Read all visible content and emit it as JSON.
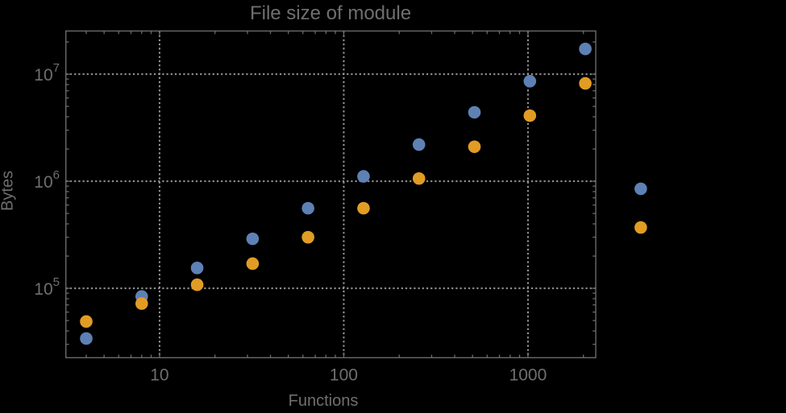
{
  "canvas": {
    "background": "#000000"
  },
  "chart_data": {
    "type": "scatter",
    "title": "File size of module",
    "xlabel": "Functions",
    "ylabel": "Bytes",
    "xscale": "log",
    "yscale": "log",
    "xlim": [
      3.1,
      2333
    ],
    "ylim": [
      22500,
      25300000
    ],
    "grid": {
      "shown": true,
      "style": "dotted",
      "color": "#989898"
    },
    "legend": "none",
    "frame_color": "#6a6a6a",
    "text_color": "#6f6f6f",
    "x_ticks": [
      {
        "value": 10,
        "label": "10"
      },
      {
        "value": 100,
        "label": "100"
      },
      {
        "value": 1000,
        "label": "1000"
      }
    ],
    "y_ticks": [
      {
        "value": 100000,
        "base": "10",
        "exp": "5"
      },
      {
        "value": 1000000,
        "base": "10",
        "exp": "6"
      },
      {
        "value": 10000000,
        "base": "10",
        "exp": "7"
      }
    ],
    "series": [
      {
        "name": "blue",
        "color": "#5E81B5",
        "points": [
          [
            4,
            34000
          ],
          [
            8,
            84000
          ],
          [
            16,
            155000
          ],
          [
            32,
            290000
          ],
          [
            64,
            560000
          ],
          [
            128,
            1110000
          ],
          [
            256,
            2200000
          ],
          [
            512,
            4400000
          ],
          [
            1024,
            8600000
          ],
          [
            2048,
            17200000
          ],
          [
            4096,
            850000
          ]
        ]
      },
      {
        "name": "orange",
        "color": "#E19C24",
        "points": [
          [
            4,
            49000
          ],
          [
            8,
            72000
          ],
          [
            16,
            108000
          ],
          [
            32,
            170000
          ],
          [
            64,
            300000
          ],
          [
            128,
            560000
          ],
          [
            256,
            1060000
          ],
          [
            512,
            2100000
          ],
          [
            1024,
            4100000
          ],
          [
            2048,
            8200000
          ],
          [
            4096,
            370000
          ]
        ]
      }
    ]
  }
}
